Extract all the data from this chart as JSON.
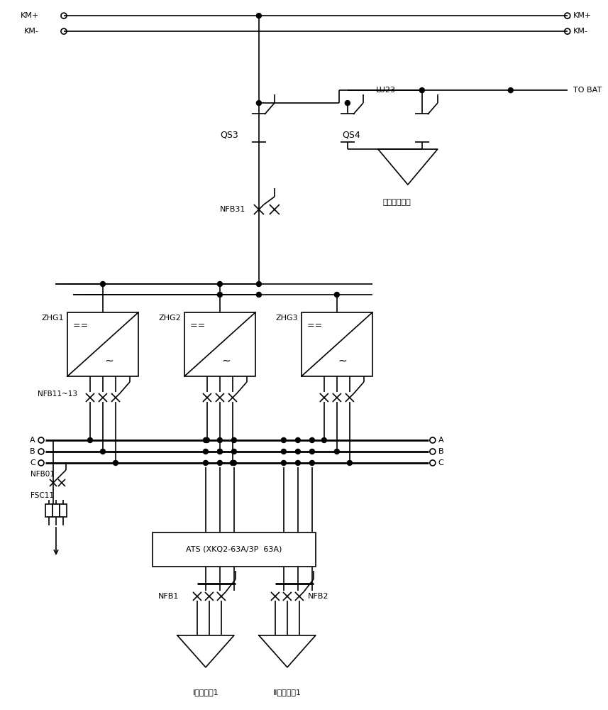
{
  "bg_color": "#ffffff",
  "line_color": "#000000",
  "lw": 1.2,
  "tlw": 2.0,
  "labels": {
    "KM_plus": "KM+",
    "KM_minus": "KM-",
    "QS3": "QS3",
    "QS4": "QS4",
    "LU23": "LU23",
    "TO_BAT": "TO BAT",
    "NFB31": "NFB31",
    "backup": "备用输入回路",
    "ZHG1": "ZHG1",
    "ZHG2": "ZHG2",
    "ZHG3": "ZHG3",
    "NFB11_13": "NFB11~13",
    "NFB01": "NFB01",
    "FSC11": "FSC11",
    "ATS": "ATS (XKQ2-63A/3P  63A)",
    "NFB1": "NFB1",
    "NFB2": "NFB2",
    "AC1": "I交流进线1",
    "AC2": "II交流进线1"
  }
}
